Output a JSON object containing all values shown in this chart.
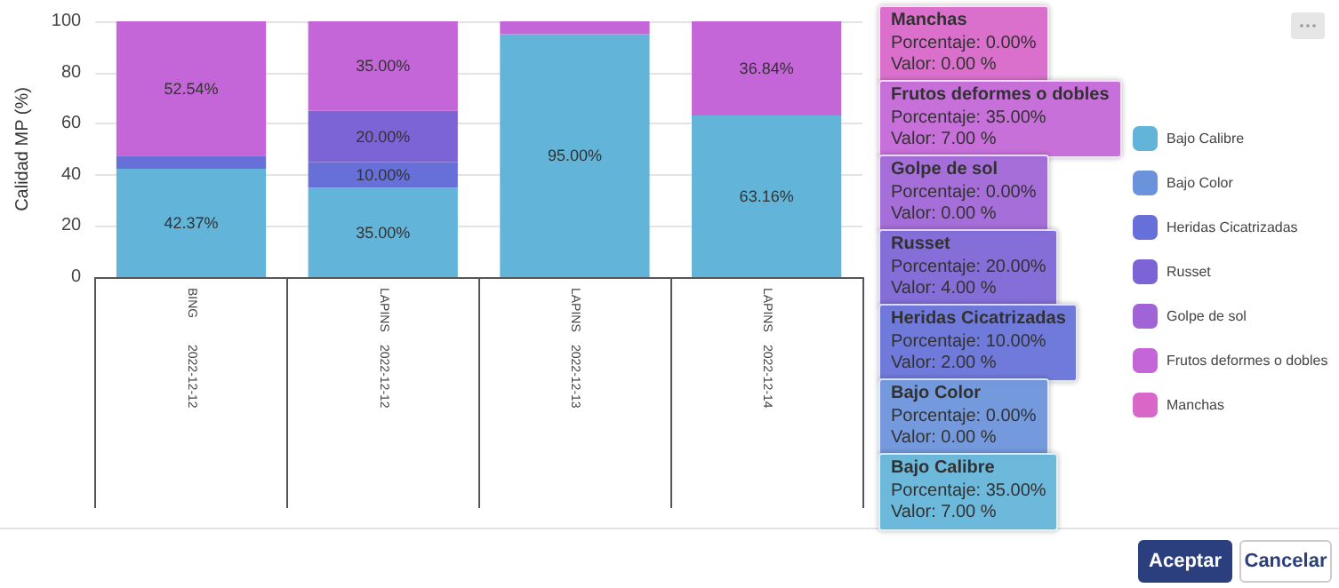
{
  "chart_data": {
    "type": "bar",
    "stacked": true,
    "ylabel": "Calidad MP (%)",
    "categories": [
      "BING\n2022-12-12",
      "LAPINS\n2022-12-12",
      "LAPINS\n2022-12-13",
      "LAPINS\n2022-12-14"
    ],
    "series": [
      {
        "name": "Bajo Calibre",
        "color": "#62b4d9",
        "values": [
          42.37,
          35,
          95,
          63.16
        ],
        "value_labels": [
          "42.37%",
          "35.00%",
          "95.00%",
          "63.16%"
        ]
      },
      {
        "name": "Bajo Color",
        "color": "#6a93db",
        "values": [
          0,
          0,
          0,
          0
        ]
      },
      {
        "name": "Heridas Cicatrizadas",
        "color": "#6670d8",
        "values": [
          5.1,
          10,
          0,
          0
        ],
        "value_labels": [
          null,
          "10.00%",
          null,
          null
        ]
      },
      {
        "name": "Russet",
        "color": "#7c64d6",
        "values": [
          0,
          20,
          0,
          0
        ],
        "value_labels": [
          null,
          "20.00%",
          null,
          null
        ]
      },
      {
        "name": "Golpe de sol",
        "color": "#a064d6",
        "values": [
          0,
          0,
          0,
          0
        ]
      },
      {
        "name": "Frutos deformes o dobles",
        "color": "#c466d8",
        "values": [
          52.54,
          35,
          5,
          36.84
        ],
        "value_labels": [
          "52.54%",
          "35.00%",
          null,
          "36.84%"
        ]
      },
      {
        "name": "Manchas",
        "color": "#d966c9",
        "values": [
          0,
          0,
          0,
          0
        ]
      }
    ],
    "ylim": [
      0,
      100
    ],
    "yticks": [
      0,
      20,
      40,
      60,
      80,
      100
    ],
    "grid": "y",
    "legend": "right",
    "annotations": [
      "Manchas\nPorcentaje: 0.00%\nValor: 0.00 %",
      "Frutos deformes o dobles\nPorcentaje: 35.00%\nValor: 7.00 %",
      "Golpe de sol\nPorcentaje: 0.00%\nValor: 0.00 %",
      "Russet\nPorcentaje: 20.00%\nValor: 4.00 %",
      "Heridas Cicatrizadas\nPorcentaje: 10.00%\nValor: 2.00 %",
      "Bajo Color\nPorcentaje: 0.00%\nValor: 0.00 %",
      "Bajo Calibre\nPorcentaje: 35.00%\nValor: 7.00 %",
      "Aceptar",
      "Cancelar"
    ]
  }
}
